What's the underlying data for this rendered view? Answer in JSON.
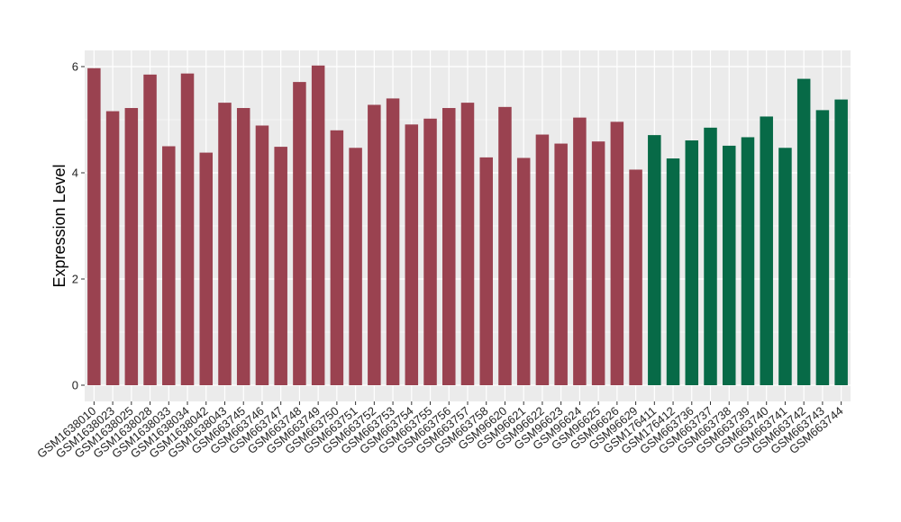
{
  "chart_data": {
    "type": "bar",
    "title": "",
    "xlabel": "",
    "ylabel": "Expression Level",
    "ylim": [
      0,
      6.2
    ],
    "yticks": [
      0,
      2,
      4,
      6
    ],
    "grid": true,
    "legend": "none",
    "colors": {
      "group_a": "#9a4250",
      "group_b": "#076a47",
      "panel_bg": "#ebebeb",
      "grid": "#ffffff"
    },
    "categories": [
      "GSM1638010",
      "GSM1638023",
      "GSM1638025",
      "GSM1638028",
      "GSM1638033",
      "GSM1638034",
      "GSM1638042",
      "GSM1638043",
      "GSM663745",
      "GSM663746",
      "GSM663747",
      "GSM663748",
      "GSM663749",
      "GSM663750",
      "GSM663751",
      "GSM663752",
      "GSM663753",
      "GSM663754",
      "GSM663755",
      "GSM663756",
      "GSM663757",
      "GSM663758",
      "GSM96620",
      "GSM96621",
      "GSM96622",
      "GSM96623",
      "GSM96624",
      "GSM96625",
      "GSM96626",
      "GSM96629",
      "GSM176411",
      "GSM176412",
      "GSM663736",
      "GSM663737",
      "GSM663738",
      "GSM663739",
      "GSM663740",
      "GSM663741",
      "GSM663742",
      "GSM663743",
      "GSM663744"
    ],
    "values": [
      5.97,
      5.16,
      5.22,
      5.85,
      4.5,
      5.87,
      4.38,
      5.32,
      5.22,
      4.89,
      4.49,
      5.71,
      6.02,
      4.8,
      4.47,
      5.28,
      5.4,
      4.91,
      5.02,
      5.22,
      5.32,
      4.29,
      5.24,
      4.28,
      4.72,
      4.55,
      5.04,
      4.59,
      4.96,
      4.06,
      4.71,
      4.27,
      4.61,
      4.85,
      4.51,
      4.67,
      5.06,
      4.47,
      5.77,
      5.18,
      5.38
    ],
    "groups": [
      "a",
      "a",
      "a",
      "a",
      "a",
      "a",
      "a",
      "a",
      "a",
      "a",
      "a",
      "a",
      "a",
      "a",
      "a",
      "a",
      "a",
      "a",
      "a",
      "a",
      "a",
      "a",
      "a",
      "a",
      "a",
      "a",
      "a",
      "a",
      "a",
      "a",
      "b",
      "b",
      "b",
      "b",
      "b",
      "b",
      "b",
      "b",
      "b",
      "b",
      "b"
    ]
  }
}
